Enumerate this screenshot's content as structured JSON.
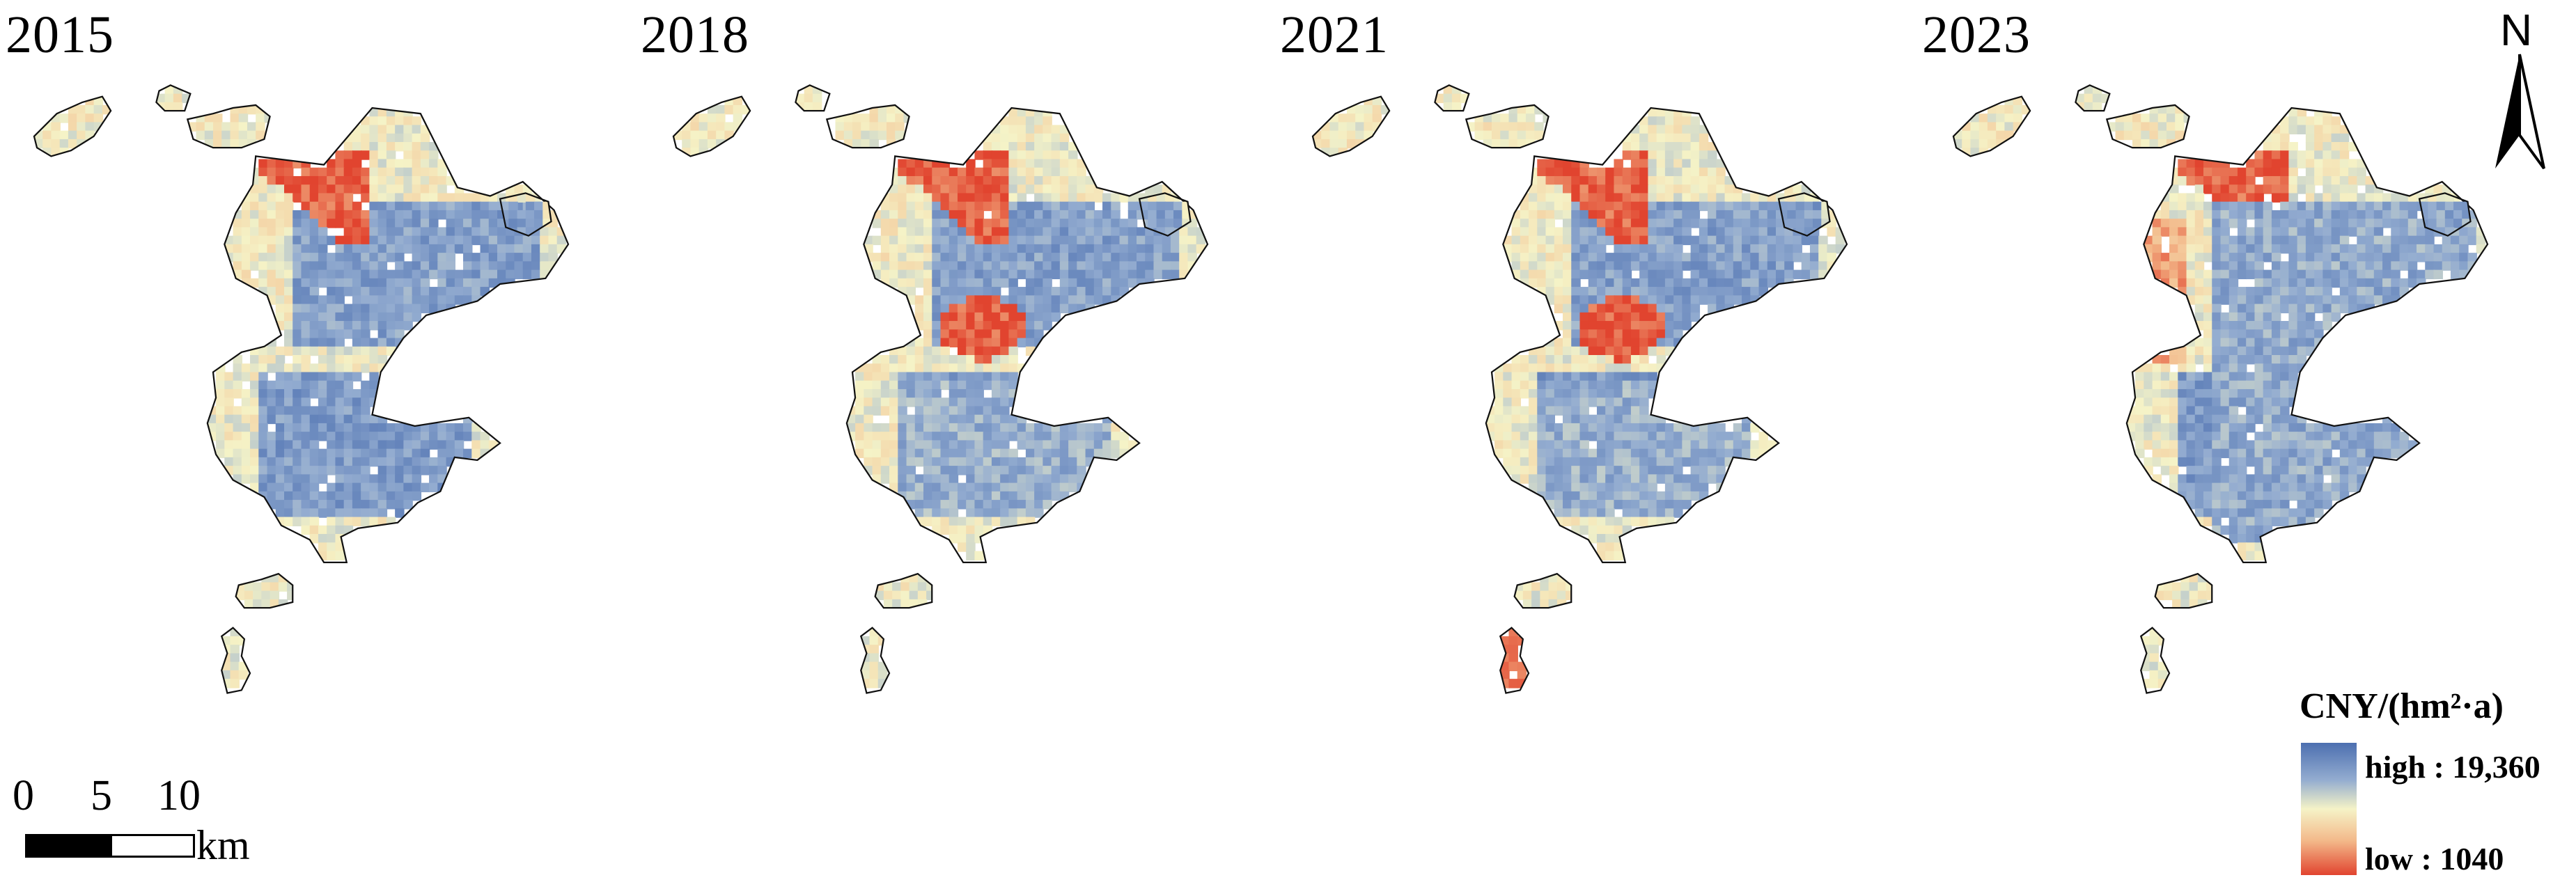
{
  "panels": [
    {
      "year": "2015",
      "variant": 0
    },
    {
      "year": "2018",
      "variant": 1
    },
    {
      "year": "2021",
      "variant": 2
    },
    {
      "year": "2023",
      "variant": 3
    }
  ],
  "north_arrow": {
    "label": "N"
  },
  "scale_bar": {
    "ticks": [
      "0",
      "5",
      "10"
    ],
    "unit": "km"
  },
  "legend": {
    "title": "CNY/(hm²·a)",
    "high_label": "high : 19,360",
    "low_label": "low : 1040",
    "high_value": 19360,
    "low_value": 1040,
    "colors": {
      "high": "#4c6fb0",
      "mid": "#f5f3c7",
      "low": "#e1442f"
    }
  }
}
